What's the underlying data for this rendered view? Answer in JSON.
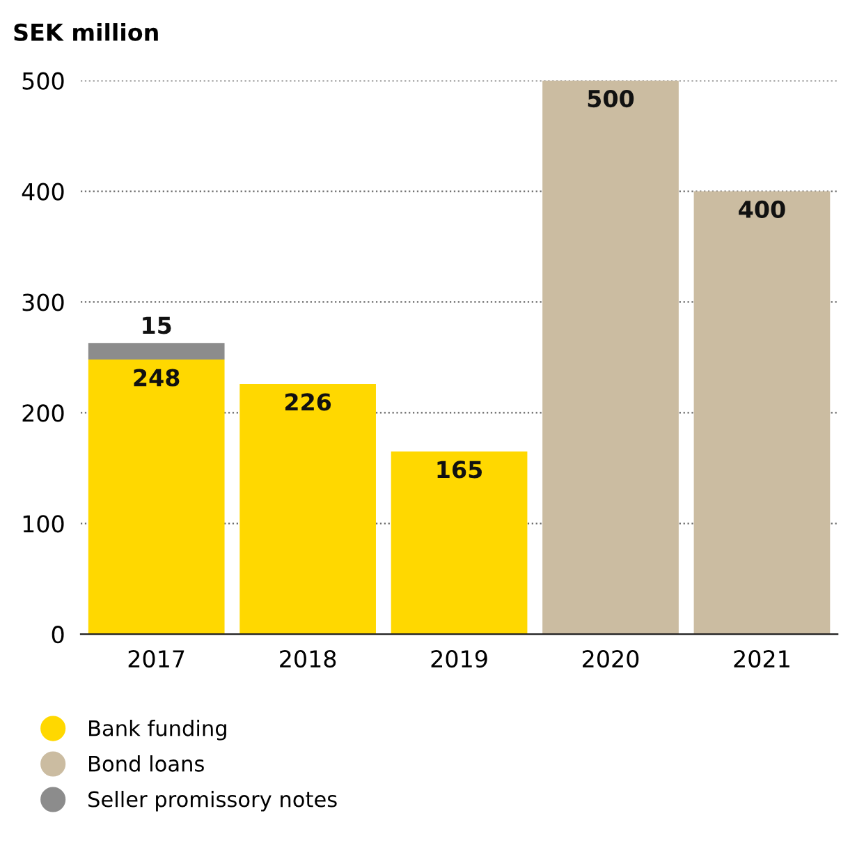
{
  "chart_data": {
    "type": "bar",
    "stacked": true,
    "ylabel": "SEK million",
    "categories": [
      "2017",
      "2018",
      "2019",
      "2020",
      "2021"
    ],
    "series": [
      {
        "name": "Bank funding",
        "color": "#ffd800",
        "values": [
          248,
          226,
          165,
          null,
          null
        ]
      },
      {
        "name": "Bond loans",
        "color": "#cbbca1",
        "values": [
          null,
          null,
          null,
          500,
          400
        ]
      },
      {
        "name": "Seller promissory notes",
        "color": "#8c8c8c",
        "values": [
          15,
          null,
          null,
          null,
          null
        ]
      }
    ],
    "ylim": [
      0,
      500
    ],
    "yticks": [
      0,
      100,
      200,
      300,
      400,
      500
    ],
    "grid": "y",
    "legend": "bottom left",
    "data_labels": true
  }
}
